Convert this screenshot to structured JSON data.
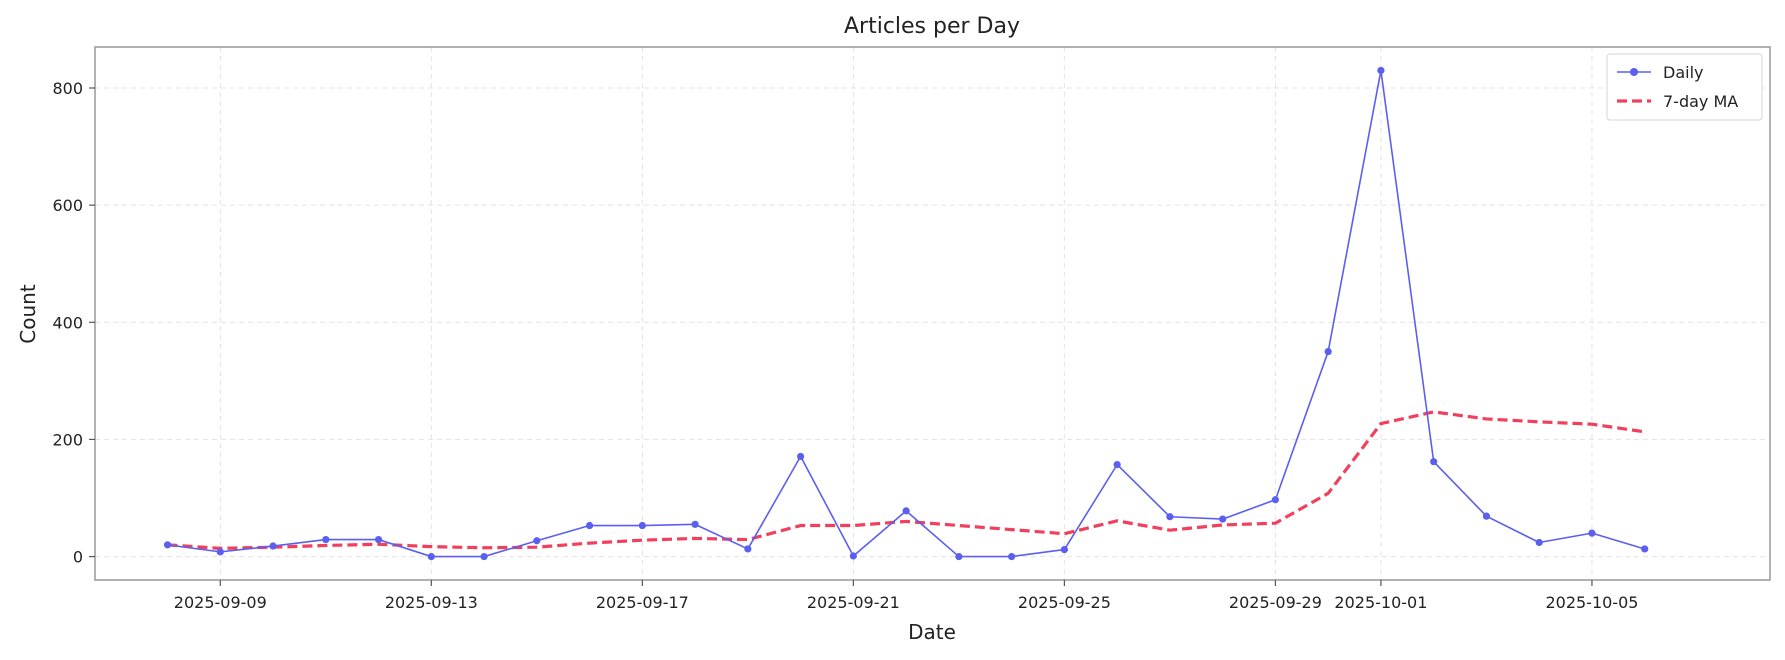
{
  "chart_data": {
    "type": "line",
    "title": "Articles per Day",
    "xlabel": "Date",
    "ylabel": "Count",
    "x_tick_labels": [
      "2025-09-09",
      "2025-09-13",
      "2025-09-17",
      "2025-09-21",
      "2025-09-25",
      "2025-09-29",
      "2025-10-01",
      "2025-10-05"
    ],
    "y_tick_labels": [
      "0",
      "200",
      "400",
      "600",
      "800"
    ],
    "ylim": [
      -40,
      870
    ],
    "xlim": [
      "2025-09-06 15:00",
      "2025-10-08 09:00"
    ],
    "grid": true,
    "legend_position": "top-right",
    "x": [
      "2025-09-08",
      "2025-09-09",
      "2025-09-10",
      "2025-09-11",
      "2025-09-12",
      "2025-09-13",
      "2025-09-14",
      "2025-09-15",
      "2025-09-16",
      "2025-09-17",
      "2025-09-18",
      "2025-09-19",
      "2025-09-20",
      "2025-09-21",
      "2025-09-22",
      "2025-09-23",
      "2025-09-24",
      "2025-09-25",
      "2025-09-26",
      "2025-09-27",
      "2025-09-28",
      "2025-09-29",
      "2025-09-30",
      "2025-10-01",
      "2025-10-02",
      "2025-10-03",
      "2025-10-04",
      "2025-10-05",
      "2025-10-06"
    ],
    "series": [
      {
        "name": "Daily",
        "color": "#5b5ff0",
        "style": "solid-with-markers",
        "values": [
          20,
          8,
          18,
          29,
          29,
          0,
          0,
          27,
          53,
          53,
          55,
          13,
          171,
          1,
          78,
          0,
          0,
          12,
          157,
          68,
          64,
          97,
          350,
          830,
          162,
          69,
          24,
          40,
          13
        ]
      },
      {
        "name": "7-day MA",
        "color": "#f0405c",
        "style": "dashed",
        "values": [
          20,
          14,
          16,
          19,
          21,
          17,
          15,
          16,
          23,
          28,
          31,
          29,
          53,
          53,
          60,
          53,
          46,
          39,
          61,
          45,
          54,
          57,
          108,
          227,
          247,
          235,
          230,
          226,
          213
        ]
      }
    ]
  }
}
